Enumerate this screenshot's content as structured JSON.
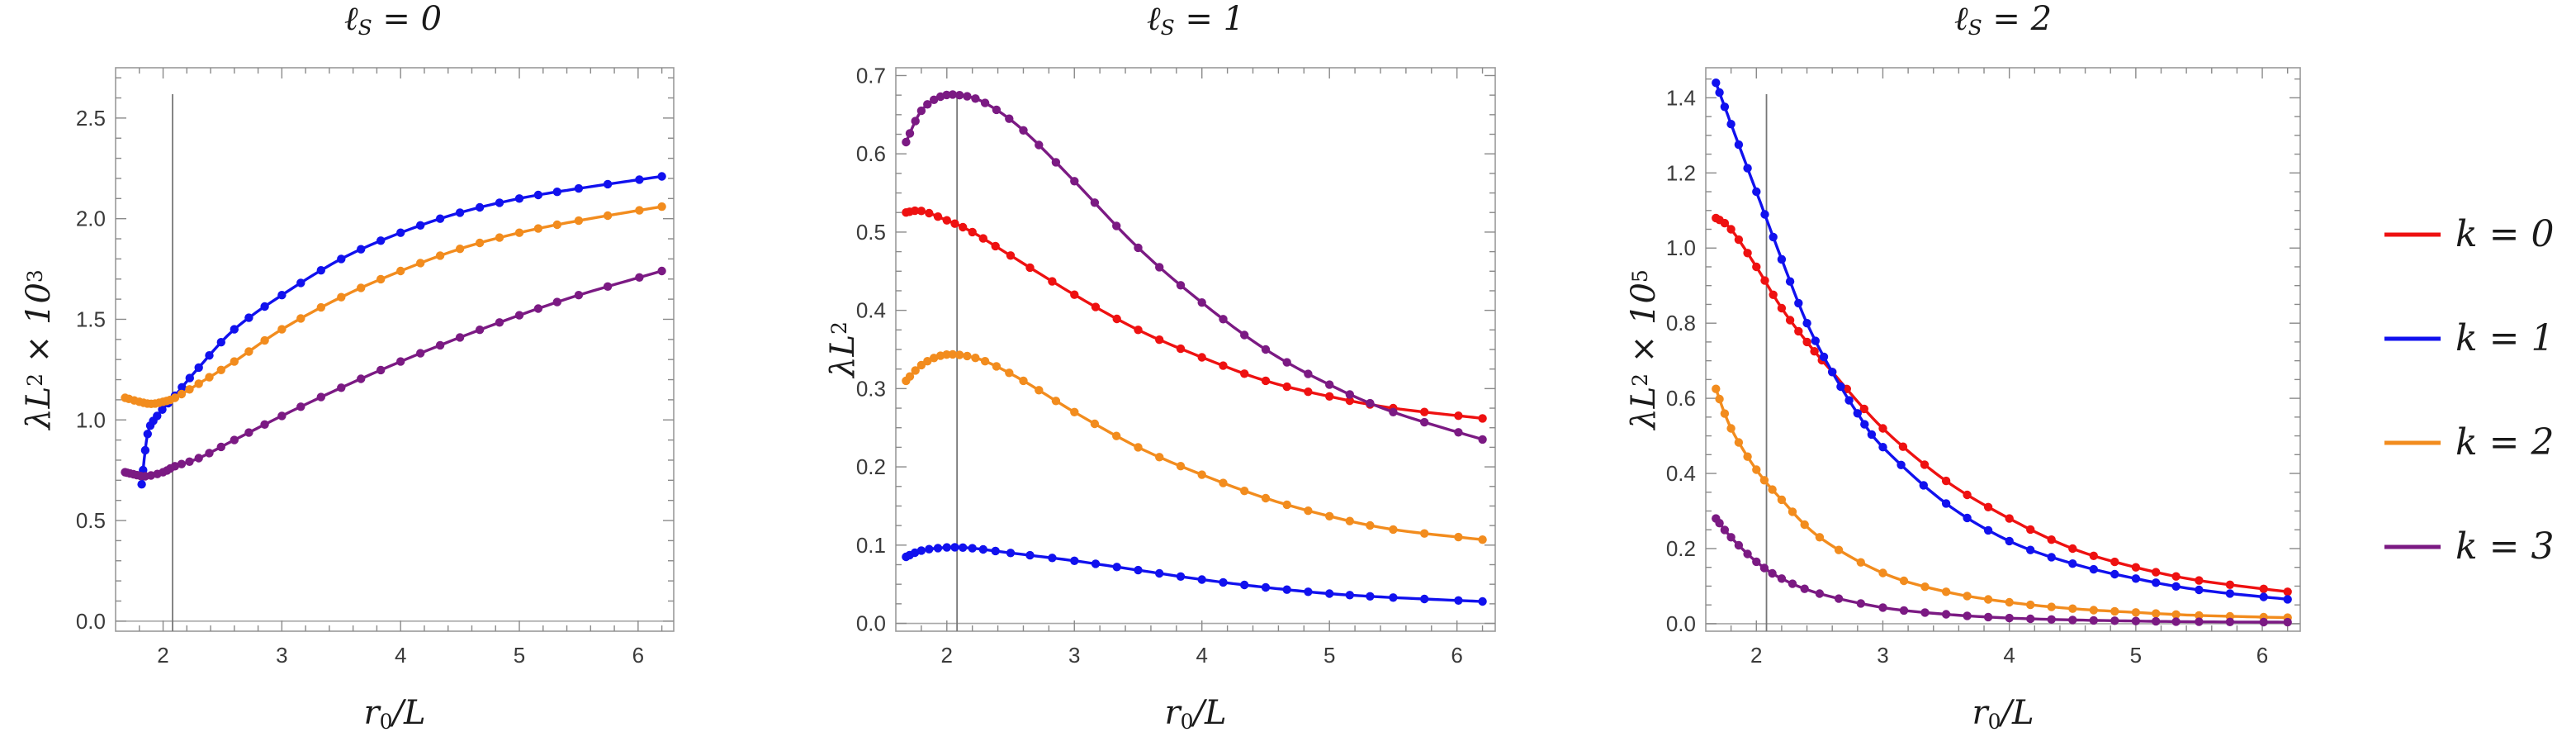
{
  "figure": {
    "x_axis_label": "r₀/L",
    "legend_title": "",
    "legend": [
      {
        "key": "k0",
        "label": "k = 0",
        "color": "#ee1111"
      },
      {
        "key": "k1",
        "label": "k = 1",
        "color": "#1111ee"
      },
      {
        "key": "k2",
        "label": "k = 2",
        "color": "#f28c1e"
      },
      {
        "key": "k3",
        "label": "k = 3",
        "color": "#7b1a83"
      }
    ]
  },
  "chart_data": [
    {
      "type": "line",
      "title": "ℓ_S = 0",
      "xlabel": "r₀/L",
      "ylabel": "λL² × 10³",
      "xlim": [
        1.6,
        6.3
      ],
      "ylim": [
        -0.05,
        2.75
      ],
      "xticks": [
        2,
        3,
        4,
        5,
        6
      ],
      "yticks": [
        0.0,
        0.5,
        1.0,
        1.5,
        2.0,
        2.5
      ],
      "ytick_labels": [
        "0.0",
        "0.5",
        "1.0",
        "1.5",
        "2.0",
        "2.5"
      ],
      "vertical_line_x": 2.08,
      "horizontal_line_y": 0,
      "series": [
        {
          "name": "k = 1",
          "key": "k1",
          "x": [
            1.82,
            1.87,
            1.95,
            2.1,
            2.3,
            2.6,
            3.0,
            3.5,
            4.0,
            4.5,
            5.0,
            5.5,
            6.2
          ],
          "y": [
            0.68,
            0.93,
            1.02,
            1.12,
            1.26,
            1.45,
            1.62,
            1.8,
            1.93,
            2.03,
            2.1,
            2.15,
            2.21
          ]
        },
        {
          "name": "k = 2",
          "key": "k2",
          "x": [
            1.68,
            1.8,
            1.9,
            2.0,
            2.1,
            2.3,
            2.6,
            3.0,
            3.5,
            4.0,
            4.5,
            5.0,
            5.5,
            6.2
          ],
          "y": [
            1.11,
            1.09,
            1.08,
            1.09,
            1.11,
            1.18,
            1.29,
            1.45,
            1.61,
            1.74,
            1.85,
            1.93,
            1.99,
            2.06
          ]
        },
        {
          "name": "k = 3",
          "key": "k3",
          "x": [
            1.68,
            1.75,
            1.85,
            2.0,
            2.1,
            2.3,
            2.6,
            3.0,
            3.5,
            4.0,
            4.5,
            5.0,
            5.5,
            6.2
          ],
          "y": [
            0.74,
            0.73,
            0.72,
            0.74,
            0.77,
            0.81,
            0.9,
            1.02,
            1.16,
            1.29,
            1.41,
            1.52,
            1.62,
            1.74
          ]
        }
      ]
    },
    {
      "type": "line",
      "title": "ℓ_S = 1",
      "xlabel": "r₀/L",
      "ylabel": "λL²",
      "xlim": [
        1.6,
        6.3
      ],
      "ylim": [
        -0.01,
        0.71
      ],
      "xticks": [
        2,
        3,
        4,
        5,
        6
      ],
      "yticks": [
        0.0,
        0.1,
        0.2,
        0.3,
        0.4,
        0.5,
        0.6,
        0.7
      ],
      "ytick_labels": [
        "0.0",
        "0.1",
        "0.2",
        "0.3",
        "0.4",
        "0.5",
        "0.6",
        "0.7"
      ],
      "vertical_line_x": 2.08,
      "horizontal_line_y": 0,
      "series": [
        {
          "name": "k = 0",
          "key": "k0",
          "x": [
            1.68,
            1.8,
            2.0,
            2.2,
            2.5,
            3.0,
            3.5,
            4.0,
            4.5,
            5.0,
            5.5,
            6.2
          ],
          "y": [
            0.525,
            0.527,
            0.515,
            0.5,
            0.47,
            0.42,
            0.375,
            0.34,
            0.31,
            0.29,
            0.275,
            0.262
          ]
        },
        {
          "name": "k = 1",
          "key": "k1",
          "x": [
            1.68,
            1.8,
            2.0,
            2.2,
            2.5,
            3.0,
            3.5,
            4.0,
            4.5,
            5.0,
            5.5,
            6.2
          ],
          "y": [
            0.085,
            0.093,
            0.097,
            0.096,
            0.09,
            0.08,
            0.068,
            0.056,
            0.046,
            0.038,
            0.033,
            0.028
          ]
        },
        {
          "name": "k = 2",
          "key": "k2",
          "x": [
            1.68,
            1.8,
            1.95,
            2.1,
            2.3,
            2.6,
            3.0,
            3.5,
            4.0,
            4.5,
            5.0,
            5.5,
            6.2
          ],
          "y": [
            0.31,
            0.33,
            0.342,
            0.343,
            0.335,
            0.31,
            0.27,
            0.225,
            0.19,
            0.16,
            0.137,
            0.12,
            0.107
          ]
        },
        {
          "name": "k = 3",
          "key": "k3",
          "x": [
            1.68,
            1.8,
            1.95,
            2.1,
            2.3,
            2.6,
            3.0,
            3.5,
            4.0,
            4.5,
            5.0,
            5.5,
            6.2
          ],
          "y": [
            0.615,
            0.655,
            0.673,
            0.675,
            0.665,
            0.63,
            0.565,
            0.48,
            0.41,
            0.35,
            0.305,
            0.27,
            0.235
          ]
        }
      ]
    },
    {
      "type": "line",
      "title": "ℓ_S = 2",
      "xlabel": "r₀/L",
      "ylabel": "λL² × 10⁵",
      "xlim": [
        1.6,
        6.3
      ],
      "ylim": [
        -0.02,
        1.48
      ],
      "xticks": [
        2,
        3,
        4,
        5,
        6
      ],
      "yticks": [
        0.0,
        0.2,
        0.4,
        0.6,
        0.8,
        1.0,
        1.2,
        1.4
      ],
      "ytick_labels": [
        "0.0",
        "0.2",
        "0.4",
        "0.6",
        "0.8",
        "1.0",
        "1.2",
        "1.4"
      ],
      "vertical_line_x": 2.08,
      "horizontal_line_y": 0,
      "series": [
        {
          "name": "k = 0",
          "key": "k0",
          "x": [
            1.68,
            1.8,
            2.0,
            2.2,
            2.4,
            2.6,
            3.0,
            3.5,
            4.0,
            4.5,
            5.0,
            5.5,
            6.2
          ],
          "y": [
            1.08,
            1.05,
            0.95,
            0.84,
            0.75,
            0.67,
            0.52,
            0.38,
            0.28,
            0.2,
            0.15,
            0.115,
            0.085
          ]
        },
        {
          "name": "k = 1",
          "key": "k1",
          "x": [
            1.68,
            1.8,
            2.0,
            2.2,
            2.4,
            2.6,
            2.8,
            3.0,
            3.5,
            4.0,
            4.5,
            5.0,
            5.5,
            6.2
          ],
          "y": [
            1.44,
            1.33,
            1.15,
            0.97,
            0.8,
            0.67,
            0.56,
            0.47,
            0.32,
            0.22,
            0.16,
            0.12,
            0.09,
            0.065
          ]
        },
        {
          "name": "k = 2",
          "key": "k2",
          "x": [
            1.68,
            1.8,
            2.0,
            2.2,
            2.5,
            3.0,
            3.5,
            4.0,
            4.5,
            5.0,
            5.5,
            6.2
          ],
          "y": [
            0.625,
            0.52,
            0.41,
            0.33,
            0.23,
            0.135,
            0.085,
            0.057,
            0.04,
            0.03,
            0.022,
            0.016
          ]
        },
        {
          "name": "k = 3",
          "key": "k3",
          "x": [
            1.68,
            1.8,
            2.0,
            2.2,
            2.5,
            3.0,
            3.5,
            4.0,
            4.5,
            5.0,
            5.5,
            6.2
          ],
          "y": [
            0.28,
            0.23,
            0.165,
            0.12,
            0.08,
            0.043,
            0.025,
            0.015,
            0.01,
            0.007,
            0.005,
            0.004
          ]
        }
      ]
    }
  ]
}
